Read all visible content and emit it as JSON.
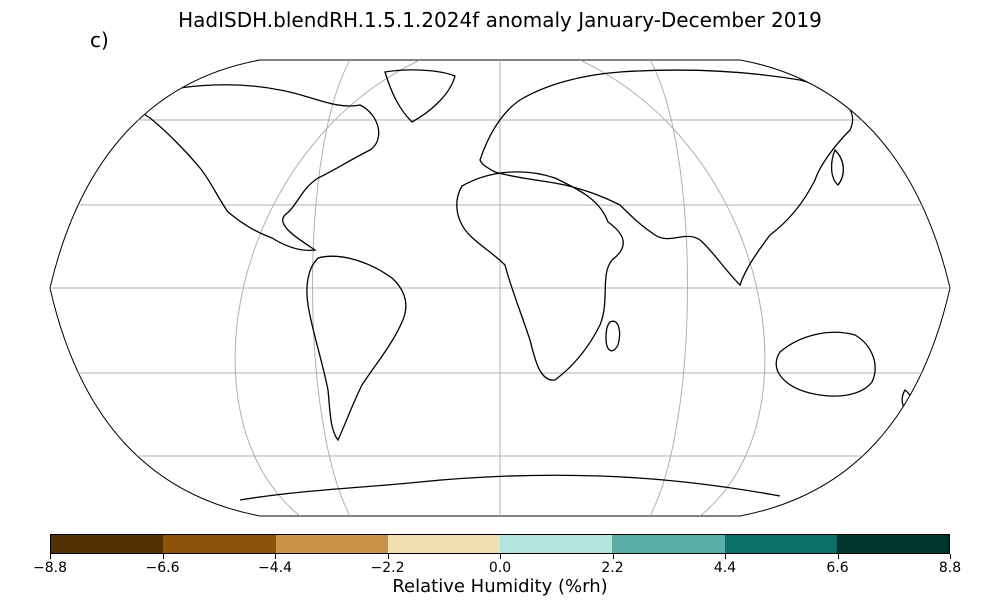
{
  "title": "HadISDH.blendRH.1.5.1.2024f anomaly January-December 2019",
  "panel_label": "c)",
  "colorbar": {
    "label": "Relative Humidity (%rh)",
    "ticks": [
      "-8.8",
      "-6.6",
      "-4.4",
      "-2.2",
      "0.0",
      "2.2",
      "4.4",
      "6.6",
      "8.8"
    ],
    "colors": [
      "#543005",
      "#8c510a",
      "#c99144",
      "#f1deb0",
      "#b3e3dd",
      "#58ada4",
      "#0b6f67",
      "#00352e"
    ]
  },
  "map": {
    "projection": "Robinson",
    "graticule": true
  }
}
